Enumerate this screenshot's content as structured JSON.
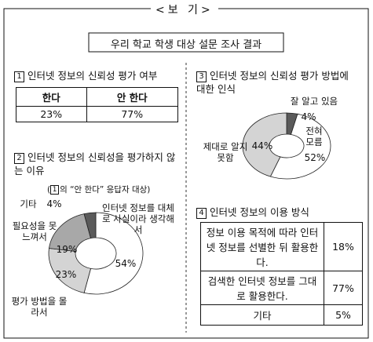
{
  "header": {
    "label": "<보 기>",
    "title": "우리 학교 학생 대상 설문 조사 결과"
  },
  "section1": {
    "number": "1",
    "title": "인터넷 정보의 신뢰성 평가 여부",
    "table": {
      "header": [
        "한다",
        "안 한다"
      ],
      "rows": [
        [
          "23%",
          "77%"
        ]
      ]
    }
  },
  "chart_data": [
    {
      "type": "pie",
      "number": "2",
      "title": "인터넷 정보의 신뢰성을 평가하지 않는 이유",
      "note": {
        "open": "(",
        "ref": "1",
        "text": "의 “안 한다” 응답자 대상)"
      },
      "categories": [
        "인터넷 정보를 대체로 사실이라 생각해서",
        "평가 방법을 몰라서",
        "필요성을 못 느껴서",
        "기타"
      ],
      "values": [
        54,
        23,
        19,
        4
      ],
      "value_labels": [
        "54%",
        "23%",
        "19%",
        "4%"
      ],
      "colors": [
        "#ffffff",
        "#d4d4d4",
        "#a8a8a8",
        "#5a5a5a"
      ]
    },
    {
      "type": "pie",
      "number": "3",
      "title": "인터넷 정보의 신뢰성 평가 방법에 대한 인식",
      "categories": [
        "잘 알고 있음",
        "전혀 모름",
        "제대로 알지 못함"
      ],
      "values": [
        4,
        52,
        44
      ],
      "value_labels": [
        "4%",
        "52%",
        "44%"
      ],
      "colors": [
        "#5a5a5a",
        "#ffffff",
        "#d4d4d4"
      ]
    }
  ],
  "section4": {
    "number": "4",
    "title": "인터넷 정보의 이용 방식",
    "table": {
      "rows": [
        [
          "정보 이용 목적에 따라 인터넷 정보를 선별한 뒤 활용한다.",
          "18%"
        ],
        [
          "검색한 인터넷 정보를 그대로 활용한다.",
          "77%"
        ],
        [
          "기타",
          "5%"
        ]
      ]
    }
  }
}
